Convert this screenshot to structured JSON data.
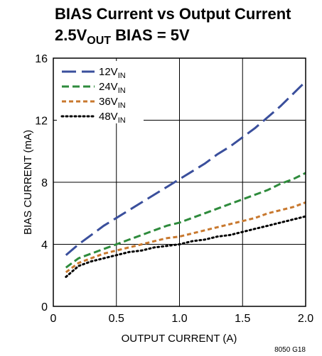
{
  "chart_data": {
    "type": "line",
    "title_line1": "BIAS Current vs Output Current",
    "title_line2_main": "2.5V",
    "title_line2_sub": "OUT",
    "title_line2_rest": " BIAS = 5V",
    "xlabel": "OUTPUT CURRENT (A)",
    "ylabel": "BIAS CURRENT (mA)",
    "xlim": [
      0,
      2.0
    ],
    "ylim": [
      0,
      16
    ],
    "xticks": [
      "0",
      "0.5",
      "1.0",
      "1.5",
      "2.0"
    ],
    "yticks": [
      "0",
      "4",
      "8",
      "12",
      "16"
    ],
    "grid": true,
    "legend_position": "top-left",
    "figure_code": "8050 G18",
    "series": [
      {
        "name_main": "12V",
        "name_sub": "IN",
        "color": "#3a4f9c",
        "style": "long-dash",
        "x": [
          0.1,
          0.2,
          0.3,
          0.4,
          0.5,
          0.6,
          0.7,
          0.8,
          0.9,
          1.0,
          1.1,
          1.2,
          1.3,
          1.4,
          1.5,
          1.6,
          1.7,
          1.8,
          1.9,
          2.0
        ],
        "y": [
          3.3,
          4.0,
          4.6,
          5.2,
          5.7,
          6.2,
          6.7,
          7.2,
          7.7,
          8.2,
          8.7,
          9.2,
          9.8,
          10.3,
          10.9,
          11.5,
          12.2,
          12.9,
          13.7,
          14.5
        ]
      },
      {
        "name_main": "24V",
        "name_sub": "IN",
        "color": "#2e8b3c",
        "style": "dash",
        "x": [
          0.1,
          0.2,
          0.3,
          0.4,
          0.5,
          0.6,
          0.7,
          0.8,
          0.9,
          1.0,
          1.1,
          1.2,
          1.3,
          1.4,
          1.5,
          1.6,
          1.7,
          1.8,
          1.9,
          2.0
        ],
        "y": [
          2.5,
          3.1,
          3.4,
          3.7,
          4.0,
          4.3,
          4.6,
          4.9,
          5.2,
          5.4,
          5.7,
          6.0,
          6.3,
          6.6,
          6.9,
          7.2,
          7.5,
          7.9,
          8.2,
          8.6
        ]
      },
      {
        "name_main": "36V",
        "name_sub": "IN",
        "color": "#c8782e",
        "style": "short-dash",
        "x": [
          0.1,
          0.2,
          0.3,
          0.4,
          0.5,
          0.6,
          0.7,
          0.8,
          0.9,
          1.0,
          1.1,
          1.2,
          1.3,
          1.4,
          1.5,
          1.6,
          1.7,
          1.8,
          1.9,
          2.0
        ],
        "y": [
          2.2,
          2.8,
          3.1,
          3.4,
          3.6,
          3.8,
          4.0,
          4.2,
          4.4,
          4.5,
          4.7,
          4.9,
          5.1,
          5.3,
          5.5,
          5.7,
          6.0,
          6.2,
          6.4,
          6.7
        ]
      },
      {
        "name_main": "48V",
        "name_sub": "IN",
        "color": "#000000",
        "style": "dot",
        "x": [
          0.1,
          0.2,
          0.3,
          0.4,
          0.5,
          0.6,
          0.7,
          0.8,
          0.9,
          1.0,
          1.1,
          1.2,
          1.3,
          1.4,
          1.5,
          1.6,
          1.7,
          1.8,
          1.9,
          2.0
        ],
        "y": [
          1.9,
          2.6,
          2.9,
          3.1,
          3.3,
          3.5,
          3.6,
          3.8,
          3.9,
          4.0,
          4.2,
          4.3,
          4.5,
          4.6,
          4.8,
          5.0,
          5.2,
          5.4,
          5.6,
          5.8
        ]
      }
    ]
  }
}
